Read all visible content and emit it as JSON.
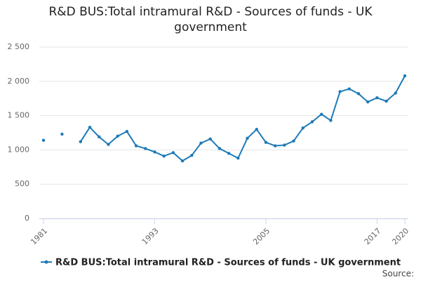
{
  "chart_data": {
    "type": "line",
    "title": "R&D BUS:Total intramural R&D - Sources of funds - UK government",
    "x": [
      1981,
      1982,
      1983,
      1984,
      1985,
      1986,
      1987,
      1988,
      1989,
      1990,
      1991,
      1992,
      1993,
      1994,
      1995,
      1996,
      1997,
      1998,
      1999,
      2000,
      2001,
      2002,
      2003,
      2004,
      2005,
      2006,
      2007,
      2008,
      2009,
      2010,
      2011,
      2012,
      2013,
      2014,
      2015,
      2016,
      2017,
      2018,
      2019,
      2020
    ],
    "series": [
      {
        "name": "R&D BUS:Total intramural R&D - Sources of funds - UK government",
        "color": "#1f7ab7",
        "values": [
          1140,
          null,
          1230,
          null,
          1120,
          1330,
          1190,
          1080,
          1200,
          1270,
          1060,
          1020,
          970,
          910,
          960,
          840,
          920,
          1100,
          1160,
          1020,
          950,
          880,
          1170,
          1300,
          1110,
          1060,
          1070,
          1130,
          1320,
          1410,
          1520,
          1430,
          1850,
          1890,
          1820,
          1700,
          1760,
          1710,
          1830,
          2080
        ]
      }
    ],
    "xlim": [
      1981,
      2020
    ],
    "xticks": [
      1981,
      1993,
      2005,
      2017,
      2020
    ],
    "ylim": [
      0,
      2500
    ],
    "yticks": [
      0,
      500,
      {
        "value": 1000,
        "label": "1 000"
      },
      {
        "value": 1500,
        "label": "1 500"
      },
      {
        "value": 2000,
        "label": "2 000"
      },
      {
        "value": 2500,
        "label": "2 500"
      }
    ],
    "grid": true,
    "source": "Source:"
  }
}
